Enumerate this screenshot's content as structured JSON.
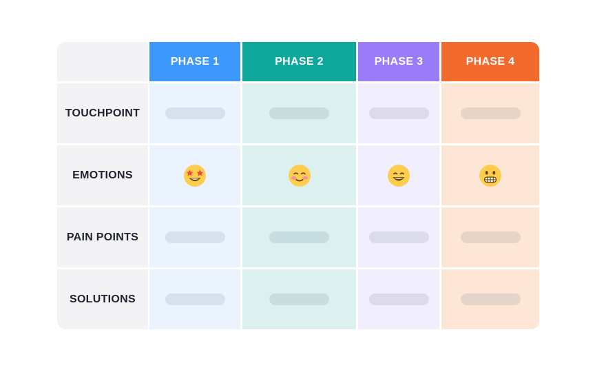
{
  "table": {
    "headers": [
      "PHASE 1",
      "PHASE 2",
      "PHASE 3",
      "PHASE 4"
    ],
    "rows": [
      "TOUCHPOINT",
      "EMOTIONS",
      "PAIN POINTS",
      "SOLUTIONS"
    ]
  }
}
